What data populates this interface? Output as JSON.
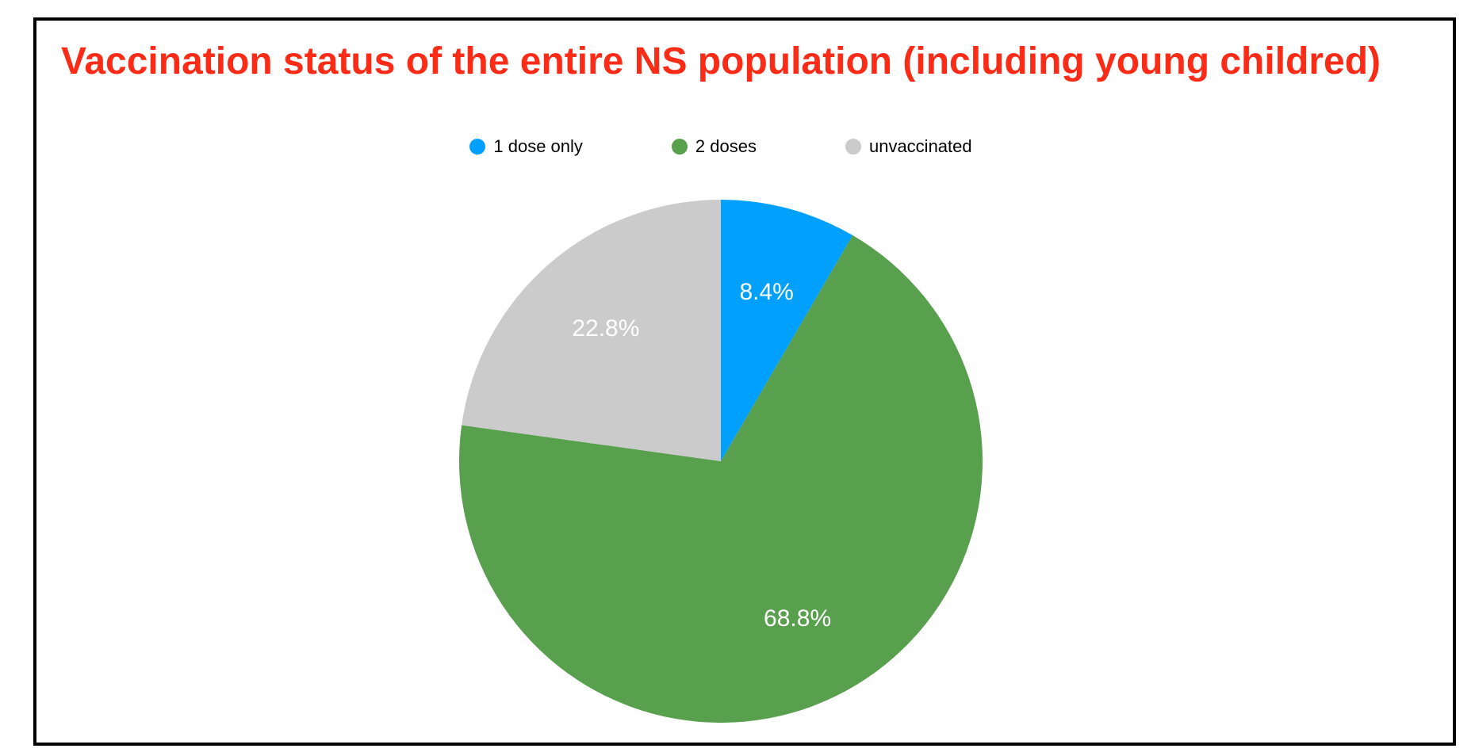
{
  "page": {
    "background": "#FFFFFF",
    "frame_border_color": "#000000"
  },
  "chart_data": {
    "type": "pie",
    "title": "Vaccination status of the entire NS population (including young childred)",
    "title_color": "#FA2B17",
    "legend_position": "top-center",
    "direction": "clockwise",
    "start_angle_deg": 0,
    "slice_label_color": "#FFFFFF",
    "slices": [
      {
        "label": "1 dose only",
        "value_pct": 8.4,
        "display": "8.4%",
        "color": "#00A0FC"
      },
      {
        "label": "2 doses",
        "value_pct": 68.8,
        "display": "68.8%",
        "color": "#58A04D"
      },
      {
        "label": "unvaccinated",
        "value_pct": 22.8,
        "display": "22.8%",
        "color": "#CBCBCB"
      }
    ]
  }
}
